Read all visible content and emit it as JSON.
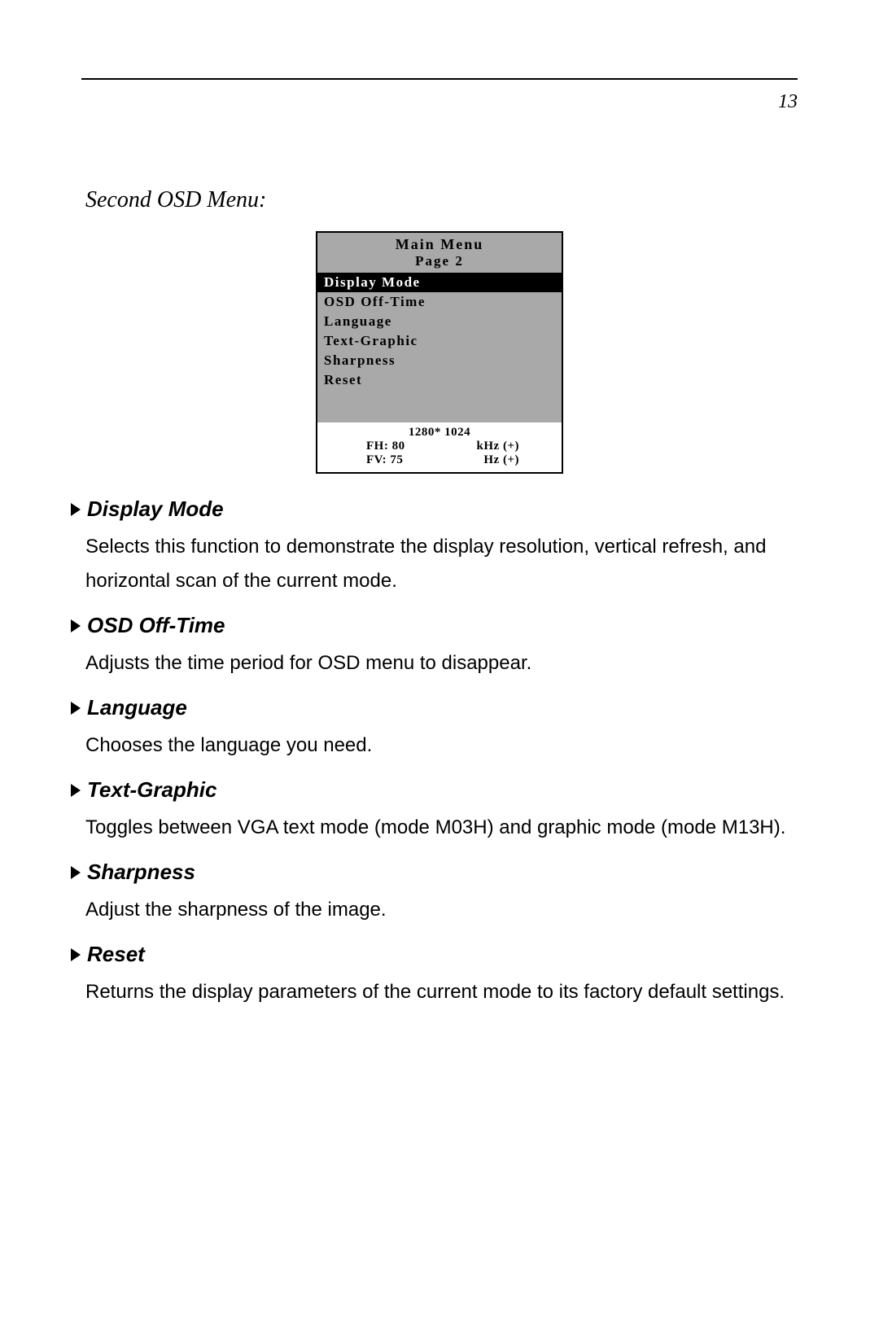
{
  "page_number": "13",
  "section_title": "Second OSD Menu:",
  "osd": {
    "title": "Main Menu",
    "page_label": "Page 2",
    "items": [
      {
        "label": "Display Mode",
        "selected": true
      },
      {
        "label": "OSD Off-Time",
        "selected": false
      },
      {
        "label": "Language",
        "selected": false
      },
      {
        "label": "Text-Graphic",
        "selected": false
      },
      {
        "label": "Sharpness",
        "selected": false
      },
      {
        "label": "Reset",
        "selected": false
      }
    ],
    "status": {
      "resolution": "1280* 1024",
      "fh_label": "FH: 80",
      "fh_unit": "kHz (+)",
      "fv_label": "FV: 75",
      "fv_unit": "Hz (+)"
    }
  },
  "descriptions": [
    {
      "title": "Display Mode",
      "body": "Selects this function to demonstrate the display resolution, vertical refresh, and horizontal scan of the current mode."
    },
    {
      "title": "OSD Off-Time",
      "body": "Adjusts the time period for OSD menu to disappear."
    },
    {
      "title": "Language",
      "body": "Chooses the language you need."
    },
    {
      "title": "Text-Graphic",
      "body": "Toggles between VGA text mode (mode M03H) and graphic mode (mode M13H)."
    },
    {
      "title": "Sharpness",
      "body": "Adjust the sharpness of the image."
    },
    {
      "title": "Reset",
      "body": "Returns the display parameters of the current mode to its factory default settings."
    }
  ]
}
